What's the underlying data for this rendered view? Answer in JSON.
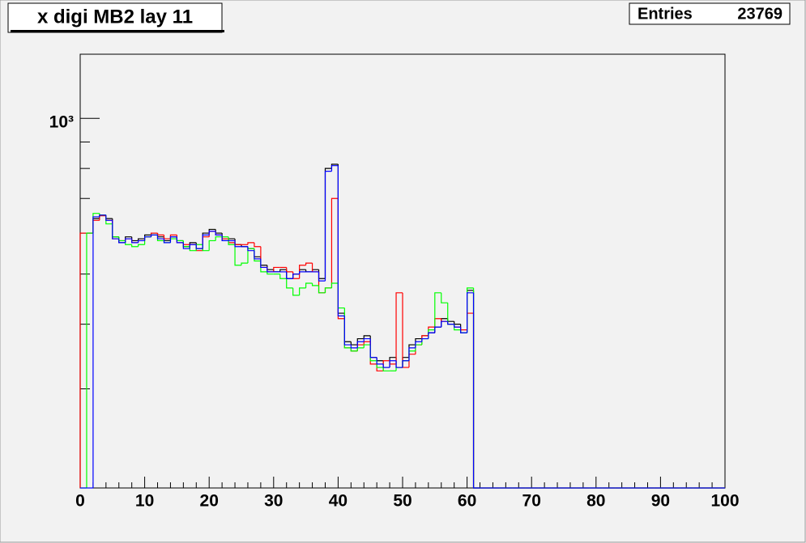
{
  "chart_data": {
    "type": "histogram",
    "title": "x digi MB2 lay 11",
    "stats_label": "Entries",
    "stats_value": 23769,
    "bins": [
      0,
      1,
      2,
      3,
      4,
      5,
      6,
      7,
      8,
      9,
      10,
      11,
      12,
      13,
      14,
      15,
      16,
      17,
      18,
      19,
      20,
      21,
      22,
      23,
      24,
      25,
      26,
      27,
      28,
      29,
      30,
      31,
      32,
      33,
      34,
      35,
      36,
      37,
      38,
      39,
      40,
      41,
      42,
      43,
      44,
      45,
      46,
      47,
      48,
      49,
      50,
      51,
      52,
      53,
      54,
      55,
      56,
      57,
      58,
      59,
      60,
      61,
      62,
      63,
      64,
      65,
      66,
      67,
      68,
      69,
      70,
      71,
      72,
      73,
      74,
      75,
      76,
      77,
      78,
      79,
      80,
      81,
      82,
      83,
      84,
      85,
      86,
      87,
      88,
      89,
      90,
      91,
      92,
      93,
      94,
      95,
      96,
      97,
      98,
      99,
      100
    ],
    "series": [
      {
        "color": "#000000",
        "values": [
          600,
          600,
          640,
          650,
          640,
          590,
          575,
          590,
          580,
          585,
          595,
          600,
          590,
          580,
          590,
          580,
          565,
          575,
          560,
          600,
          610,
          600,
          580,
          585,
          570,
          565,
          560,
          540,
          520,
          510,
          505,
          510,
          490,
          500,
          510,
          505,
          510,
          490,
          800,
          815,
          420,
          370,
          365,
          375,
          380,
          345,
          340,
          330,
          345,
          330,
          345,
          365,
          375,
          380,
          385,
          395,
          410,
          405,
          400,
          385,
          465,
          0,
          0,
          0,
          0,
          0,
          0,
          0,
          0,
          0,
          0,
          0,
          0,
          0,
          0,
          0,
          0,
          0,
          0,
          0,
          0,
          0,
          0,
          0,
          0,
          0,
          0,
          0,
          0,
          0,
          0,
          0,
          0,
          0,
          0,
          0,
          0,
          0,
          0,
          0
        ]
      },
      {
        "color": "#ff0000",
        "values": [
          600,
          600,
          635,
          648,
          635,
          585,
          580,
          585,
          575,
          580,
          590,
          600,
          595,
          585,
          595,
          575,
          570,
          570,
          555,
          590,
          605,
          595,
          585,
          575,
          570,
          570,
          575,
          565,
          515,
          505,
          515,
          515,
          505,
          490,
          520,
          525,
          505,
          460,
          470,
          700,
          410,
          360,
          355,
          365,
          370,
          335,
          325,
          340,
          335,
          460,
          330,
          350,
          365,
          380,
          395,
          410,
          405,
          400,
          395,
          390,
          420,
          0,
          0,
          0,
          0,
          0,
          0,
          0,
          0,
          0,
          0,
          0,
          0,
          0,
          0,
          0,
          0,
          0,
          0,
          0,
          0,
          0,
          0,
          0,
          0,
          0,
          0,
          0,
          0,
          0,
          0,
          0,
          0,
          0,
          0,
          0,
          0,
          0,
          0,
          0
        ]
      },
      {
        "color": "#00ff00",
        "values": [
          0,
          600,
          655,
          650,
          625,
          590,
          580,
          570,
          565,
          570,
          590,
          595,
          580,
          575,
          585,
          580,
          565,
          555,
          570,
          555,
          580,
          590,
          590,
          570,
          520,
          525,
          560,
          530,
          505,
          500,
          500,
          490,
          470,
          455,
          470,
          480,
          475,
          460,
          470,
          480,
          430,
          360,
          355,
          360,
          365,
          340,
          330,
          325,
          325,
          330,
          340,
          355,
          365,
          375,
          390,
          460,
          440,
          400,
          390,
          385,
          470,
          0,
          0,
          0,
          0,
          0,
          0,
          0,
          0,
          0,
          0,
          0,
          0,
          0,
          0,
          0,
          0,
          0,
          0,
          0,
          0,
          0,
          0,
          0,
          0,
          0,
          0,
          0,
          0,
          0,
          0,
          0,
          0,
          0,
          0,
          0,
          0,
          0,
          0,
          0
        ]
      },
      {
        "color": "#0000ff",
        "values": [
          0,
          0,
          645,
          650,
          635,
          585,
          575,
          585,
          575,
          580,
          590,
          595,
          585,
          575,
          590,
          575,
          560,
          570,
          560,
          595,
          605,
          595,
          580,
          580,
          565,
          565,
          555,
          535,
          515,
          505,
          505,
          505,
          490,
          500,
          505,
          505,
          505,
          485,
          790,
          810,
          415,
          365,
          360,
          370,
          375,
          345,
          335,
          330,
          340,
          330,
          340,
          360,
          370,
          375,
          385,
          395,
          405,
          400,
          395,
          385,
          460,
          0,
          0,
          0,
          0,
          0,
          0,
          0,
          0,
          0,
          0,
          0,
          0,
          0,
          0,
          0,
          0,
          0,
          0,
          0,
          0,
          0,
          0,
          0,
          0,
          0,
          0,
          0,
          0,
          0,
          0,
          0,
          0,
          0,
          0,
          0,
          0,
          0,
          0,
          0
        ]
      }
    ],
    "xlim": [
      0,
      100
    ],
    "xticks": [
      0,
      10,
      20,
      30,
      40,
      50,
      60,
      70,
      80,
      90,
      100
    ],
    "xminorticks": [
      2,
      4,
      6,
      8,
      12,
      14,
      16,
      18,
      22,
      24,
      26,
      28,
      32,
      34,
      36,
      38,
      42,
      44,
      46,
      48,
      52,
      54,
      56,
      58,
      62,
      64,
      66,
      68,
      72,
      74,
      76,
      78,
      82,
      84,
      86,
      88,
      92,
      94,
      96,
      98
    ],
    "ylim": [
      193,
      1330
    ],
    "log_y": true,
    "yticks": [
      {
        "value": 1000,
        "label": "10³"
      }
    ],
    "yminorticks": [
      300,
      400,
      500,
      600,
      700,
      800,
      900
    ]
  }
}
